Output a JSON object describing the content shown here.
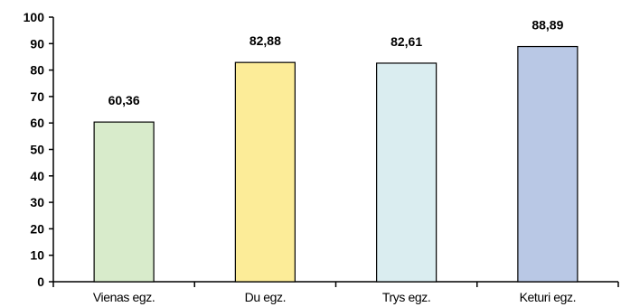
{
  "chart_data": {
    "type": "bar",
    "title": "",
    "xlabel": "",
    "ylabel": "",
    "categories": [
      "Vienas egz.",
      "Du egz.",
      "Trys egz.",
      "Keturi egz."
    ],
    "values": [
      60.36,
      82.88,
      82.61,
      88.89
    ],
    "value_labels": [
      "60,36",
      "82,88",
      "82,61",
      "88,89"
    ],
    "bar_colors": [
      "#d8ebcb",
      "#fcec98",
      "#daedf0",
      "#b9c8e5"
    ],
    "ylim": [
      0,
      100
    ],
    "yticks": [
      0,
      10,
      20,
      30,
      40,
      50,
      60,
      70,
      80,
      90,
      100
    ],
    "grid": false,
    "legend": "none"
  }
}
